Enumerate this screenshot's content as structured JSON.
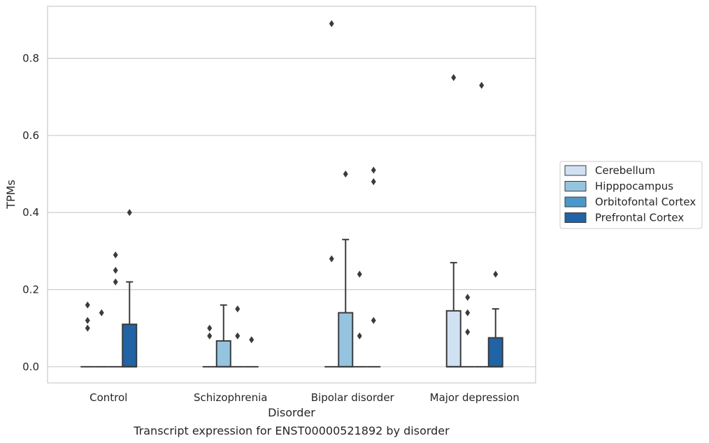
{
  "chart_data": {
    "type": "box",
    "caption": "Transcript expression for ENST00000521892 by disorder",
    "xlabel": "Disorder",
    "ylabel": "TPMs",
    "ylim": [
      -0.042,
      0.935
    ],
    "yticks": [
      0.0,
      0.2,
      0.4,
      0.6,
      0.8
    ],
    "ytick_labels": [
      "0.0",
      "0.2",
      "0.4",
      "0.6",
      "0.8"
    ],
    "categories": [
      "Control",
      "Schizophrenia",
      "Bipolar disorder",
      "Major depression"
    ],
    "grid": "horizontal",
    "legend_position": "right",
    "series": [
      {
        "name": "Cerebellum",
        "color": "#d0e1f2",
        "boxes": [
          {
            "q1": 0,
            "median": 0,
            "q3": 0,
            "whisker_low": 0,
            "whisker_high": 0,
            "outliers": [
              0.16,
              0.12,
              0.1
            ]
          },
          {
            "q1": 0,
            "median": 0,
            "q3": 0,
            "whisker_low": 0,
            "whisker_high": 0,
            "outliers": [
              0.1,
              0.08
            ]
          },
          {
            "q1": 0,
            "median": 0,
            "q3": 0,
            "whisker_low": 0,
            "whisker_high": 0,
            "outliers": [
              0.89,
              0.28
            ]
          },
          {
            "q1": 0,
            "median": 0,
            "q3": 0.145,
            "whisker_low": 0,
            "whisker_high": 0.27,
            "outliers": [
              0.75
            ]
          }
        ]
      },
      {
        "name": "Hipppocampus",
        "color": "#94c4df",
        "boxes": [
          {
            "q1": 0,
            "median": 0,
            "q3": 0,
            "whisker_low": 0,
            "whisker_high": 0,
            "outliers": [
              0.14
            ]
          },
          {
            "q1": 0,
            "median": 0,
            "q3": 0.067,
            "whisker_low": 0,
            "whisker_high": 0.16,
            "outliers": []
          },
          {
            "q1": 0,
            "median": 0,
            "q3": 0.14,
            "whisker_low": 0,
            "whisker_high": 0.33,
            "outliers": [
              0.5
            ]
          },
          {
            "q1": 0,
            "median": 0,
            "q3": 0,
            "whisker_low": 0,
            "whisker_high": 0,
            "outliers": [
              0.18,
              0.14,
              0.09
            ]
          }
        ]
      },
      {
        "name": "Orbitofontal Cortex",
        "color": "#4a98c9",
        "boxes": [
          {
            "q1": 0,
            "median": 0,
            "q3": 0,
            "whisker_low": 0,
            "whisker_high": 0,
            "outliers": [
              0.29,
              0.25,
              0.22
            ]
          },
          {
            "q1": 0,
            "median": 0,
            "q3": 0,
            "whisker_low": 0,
            "whisker_high": 0,
            "outliers": [
              0.15,
              0.08
            ]
          },
          {
            "q1": 0,
            "median": 0,
            "q3": 0,
            "whisker_low": 0,
            "whisker_high": 0,
            "outliers": [
              0.24,
              0.08
            ]
          },
          {
            "q1": 0,
            "median": 0,
            "q3": 0,
            "whisker_low": 0,
            "whisker_high": 0,
            "outliers": [
              0.73
            ]
          }
        ]
      },
      {
        "name": "Prefrontal Cortex",
        "color": "#2164a6",
        "boxes": [
          {
            "q1": 0,
            "median": 0,
            "q3": 0.11,
            "whisker_low": 0,
            "whisker_high": 0.22,
            "outliers": [
              0.4
            ]
          },
          {
            "q1": 0,
            "median": 0,
            "q3": 0,
            "whisker_low": 0,
            "whisker_high": 0,
            "outliers": [
              0.07
            ]
          },
          {
            "q1": 0,
            "median": 0,
            "q3": 0,
            "whisker_low": 0,
            "whisker_high": 0,
            "outliers": [
              0.51,
              0.48,
              0.12
            ]
          },
          {
            "q1": 0,
            "median": 0,
            "q3": 0.075,
            "whisker_low": 0,
            "whisker_high": 0.15,
            "outliers": [
              0.24
            ]
          }
        ]
      }
    ]
  }
}
